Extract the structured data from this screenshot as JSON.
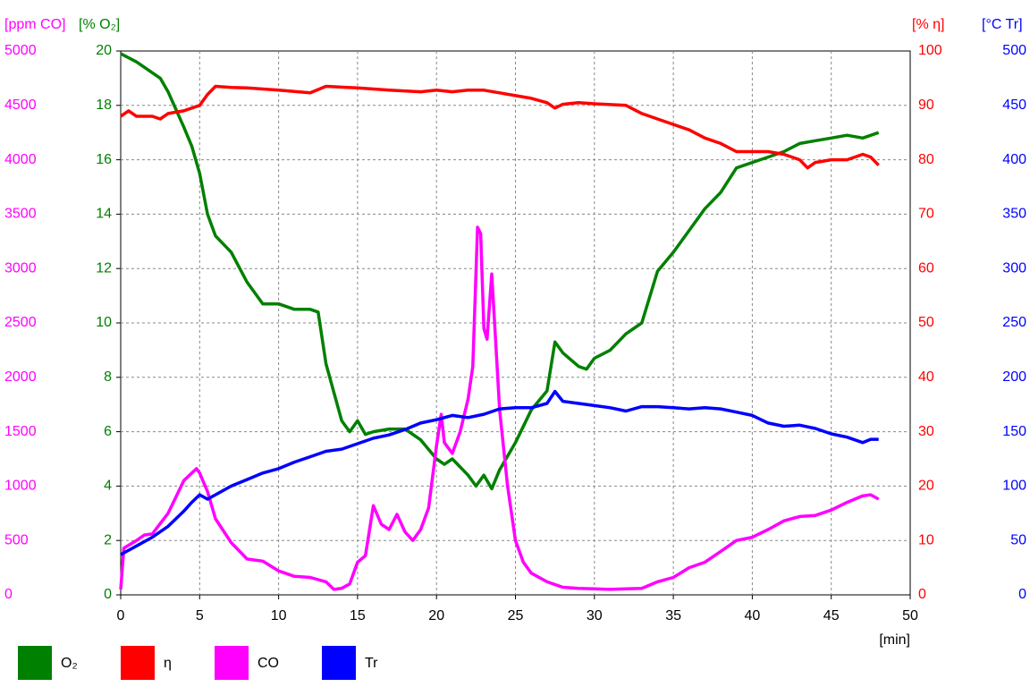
{
  "chart_data": {
    "type": "line",
    "x_label": "[min]",
    "xlim": [
      0,
      50
    ],
    "xticks": [
      0,
      5,
      10,
      15,
      20,
      25,
      30,
      35,
      40,
      45,
      50
    ],
    "grid": true,
    "axes": {
      "co": {
        "label": "[ppm CO]",
        "color": "#ff00ff",
        "side": "left",
        "lim": [
          0,
          5000
        ],
        "ticks": [
          0,
          500,
          1000,
          1500,
          2000,
          2500,
          3000,
          3500,
          4000,
          4500,
          5000
        ]
      },
      "o2": {
        "label": "[% O₂]",
        "color": "#008000",
        "side": "left",
        "lim": [
          0,
          20
        ],
        "ticks": [
          0,
          2,
          4,
          6,
          8,
          10,
          12,
          14,
          16,
          18,
          20
        ]
      },
      "eta": {
        "label": "[% η]",
        "color": "#ff0000",
        "side": "right",
        "lim": [
          0,
          100
        ],
        "ticks": [
          0,
          10,
          20,
          30,
          40,
          50,
          60,
          70,
          80,
          90,
          100
        ]
      },
      "tr": {
        "label": "[°C Tr]",
        "color": "#0000ff",
        "side": "right",
        "lim": [
          0,
          500
        ],
        "ticks": [
          0,
          50,
          100,
          150,
          200,
          250,
          300,
          350,
          400,
          450,
          500
        ]
      }
    },
    "series": [
      {
        "name": "O₂",
        "color": "#008000",
        "axis": "o2",
        "x": [
          0,
          1,
          2,
          2.5,
          3,
          4,
          4.5,
          5,
          5.5,
          6,
          7,
          8,
          9,
          10,
          11,
          12,
          12.5,
          13,
          14,
          14.5,
          15,
          15.5,
          16,
          17,
          18,
          19,
          20,
          20.5,
          21,
          22,
          22.5,
          23,
          23.5,
          24,
          25,
          26,
          27,
          27.5,
          28,
          29,
          29.5,
          30,
          31,
          32,
          33,
          34,
          35,
          36,
          37,
          38,
          39,
          40,
          41,
          42,
          43,
          44,
          45,
          46,
          47,
          48
        ],
        "values": [
          19.9,
          19.6,
          19.2,
          19,
          18.5,
          17.2,
          16.5,
          15.5,
          14,
          13.2,
          12.6,
          11.5,
          10.7,
          10.7,
          10.5,
          10.5,
          10.4,
          8.5,
          6.4,
          6,
          6.4,
          5.9,
          6,
          6.1,
          6.1,
          5.7,
          5,
          4.8,
          5,
          4.4,
          4,
          4.4,
          3.9,
          4.6,
          5.6,
          6.8,
          7.5,
          9.3,
          8.9,
          8.4,
          8.3,
          8.7,
          9,
          9.6,
          10,
          11.9,
          12.6,
          13.4,
          14.2,
          14.8,
          15.7,
          15.9,
          16.1,
          16.3,
          16.6,
          16.7,
          16.8,
          16.9,
          16.8,
          17
        ]
      },
      {
        "name": "η",
        "color": "#ff0000",
        "axis": "eta",
        "x": [
          0,
          0.5,
          1,
          2,
          2.5,
          3,
          4,
          5,
          5.5,
          6,
          7,
          8,
          10,
          12,
          13,
          15,
          17,
          19,
          20,
          21,
          22,
          23,
          24,
          25,
          26,
          27,
          27.5,
          28,
          29,
          30,
          32,
          33,
          34,
          35,
          36,
          37,
          38,
          39,
          40,
          41,
          42,
          43,
          43.5,
          44,
          45,
          46,
          47,
          47.5,
          48
        ],
        "values": [
          88,
          89,
          88,
          88,
          87.5,
          88.5,
          89,
          90,
          92,
          93.5,
          93.3,
          93.2,
          92.8,
          92.3,
          93.5,
          93.2,
          92.8,
          92.5,
          92.8,
          92.5,
          92.8,
          92.8,
          92.3,
          91.8,
          91.3,
          90.5,
          89.5,
          90.2,
          90.5,
          90.3,
          90,
          88.5,
          87.5,
          86.5,
          85.5,
          84,
          83,
          81.5,
          81.5,
          81.5,
          81,
          80,
          78.5,
          79.5,
          80,
          80,
          81,
          80.5,
          79
        ]
      },
      {
        "name": "CO",
        "color": "#ff00ff",
        "axis": "co",
        "x": [
          0,
          0.2,
          1,
          1.5,
          2,
          3,
          3.5,
          4,
          4.5,
          4.8,
          5,
          5.5,
          6,
          7,
          8,
          9,
          10,
          11,
          12,
          13,
          13.5,
          14,
          14.5,
          15,
          15.5,
          16,
          16.5,
          17,
          17.5,
          18,
          18.5,
          19,
          19.5,
          20,
          20.3,
          20.5,
          21,
          21.5,
          22,
          22.3,
          22.6,
          22.8,
          23,
          23.2,
          23.5,
          23.8,
          24,
          24.5,
          25,
          25.5,
          26,
          27,
          28,
          29,
          30,
          31,
          32,
          33,
          34,
          35,
          36,
          37,
          38,
          39,
          40,
          41,
          42,
          43,
          44,
          45,
          46,
          47,
          47.5,
          48
        ],
        "values": [
          50,
          430,
          500,
          550,
          560,
          750,
          900,
          1050,
          1120,
          1160,
          1120,
          950,
          700,
          480,
          330,
          310,
          220,
          170,
          160,
          120,
          50,
          60,
          100,
          300,
          360,
          820,
          650,
          600,
          740,
          580,
          500,
          600,
          800,
          1370,
          1660,
          1400,
          1300,
          1500,
          1800,
          2100,
          3380,
          3320,
          2450,
          2350,
          2950,
          2200,
          1700,
          1000,
          500,
          300,
          200,
          120,
          70,
          60,
          55,
          50,
          55,
          60,
          120,
          160,
          250,
          300,
          400,
          500,
          530,
          600,
          680,
          720,
          730,
          780,
          850,
          910,
          920,
          880
        ]
      },
      {
        "name": "Tr",
        "color": "#0000ff",
        "axis": "tr",
        "x": [
          0,
          1,
          2,
          3,
          4,
          4.5,
          5,
          5.5,
          6,
          7,
          8,
          9,
          10,
          11,
          12,
          13,
          14,
          15,
          16,
          17,
          18,
          19,
          20,
          21,
          22,
          23,
          24,
          25,
          26,
          27,
          27.5,
          28,
          29,
          30,
          31,
          32,
          33,
          34,
          35,
          36,
          37,
          38,
          39,
          40,
          41,
          42,
          43,
          44,
          45,
          46,
          47,
          47.5,
          48
        ],
        "values": [
          37,
          45,
          53,
          63,
          77,
          85,
          92,
          88,
          92,
          100,
          106,
          112,
          116,
          122,
          127,
          132,
          134,
          139,
          144,
          147,
          152,
          158,
          161,
          165,
          163,
          166,
          171,
          172,
          172,
          176,
          187,
          178,
          176,
          174,
          172,
          169,
          173,
          173,
          172,
          171,
          172,
          171,
          168,
          165,
          158,
          155,
          156,
          153,
          148,
          145,
          140,
          143,
          143
        ]
      }
    ]
  }
}
